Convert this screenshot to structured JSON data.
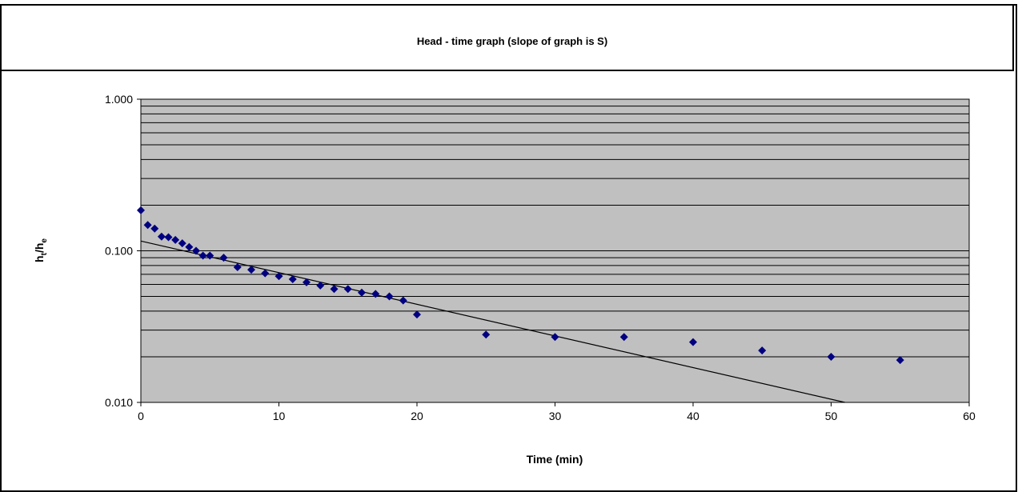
{
  "chart_data": {
    "type": "scatter",
    "title": "Head - time graph (slope of graph is S)",
    "xlabel": "Time (min)",
    "ylabel": {
      "main": "h",
      "sub1": "t",
      "sep": "/h",
      "sub2": "e"
    },
    "xlim": [
      0,
      60
    ],
    "ylim": [
      0.01,
      1
    ],
    "yscale": "log",
    "grid": true,
    "x_ticks": [
      "0",
      "10",
      "20",
      "30",
      "40",
      "50",
      "60"
    ],
    "y_ticks": [
      "0.010",
      "0.100",
      "1.000"
    ],
    "series": [
      {
        "color": "#000080",
        "marker": "diamond",
        "x": [
          0,
          0.5,
          1,
          1.5,
          2,
          2.5,
          3,
          3.5,
          4,
          4.5,
          5,
          6,
          7,
          8,
          9,
          10,
          11,
          12,
          13,
          14,
          15,
          16,
          17,
          18,
          19,
          20,
          25,
          30,
          35,
          40,
          45,
          50,
          55
        ],
        "y": [
          0.185,
          0.148,
          0.14,
          0.124,
          0.123,
          0.118,
          0.112,
          0.106,
          0.1,
          0.093,
          0.093,
          0.09,
          0.078,
          0.075,
          0.071,
          0.068,
          0.065,
          0.062,
          0.059,
          0.056,
          0.056,
          0.053,
          0.052,
          0.05,
          0.047,
          0.038,
          0.028,
          0.027,
          0.027,
          0.025,
          0.022,
          0.02,
          0.019
        ]
      }
    ],
    "trendline": {
      "type": "exponential",
      "x": [
        0,
        51
      ],
      "y": [
        0.116,
        0.01
      ],
      "color": "#000000"
    },
    "plot_background": "#c0c0c0",
    "gridline_color": "#000000"
  }
}
